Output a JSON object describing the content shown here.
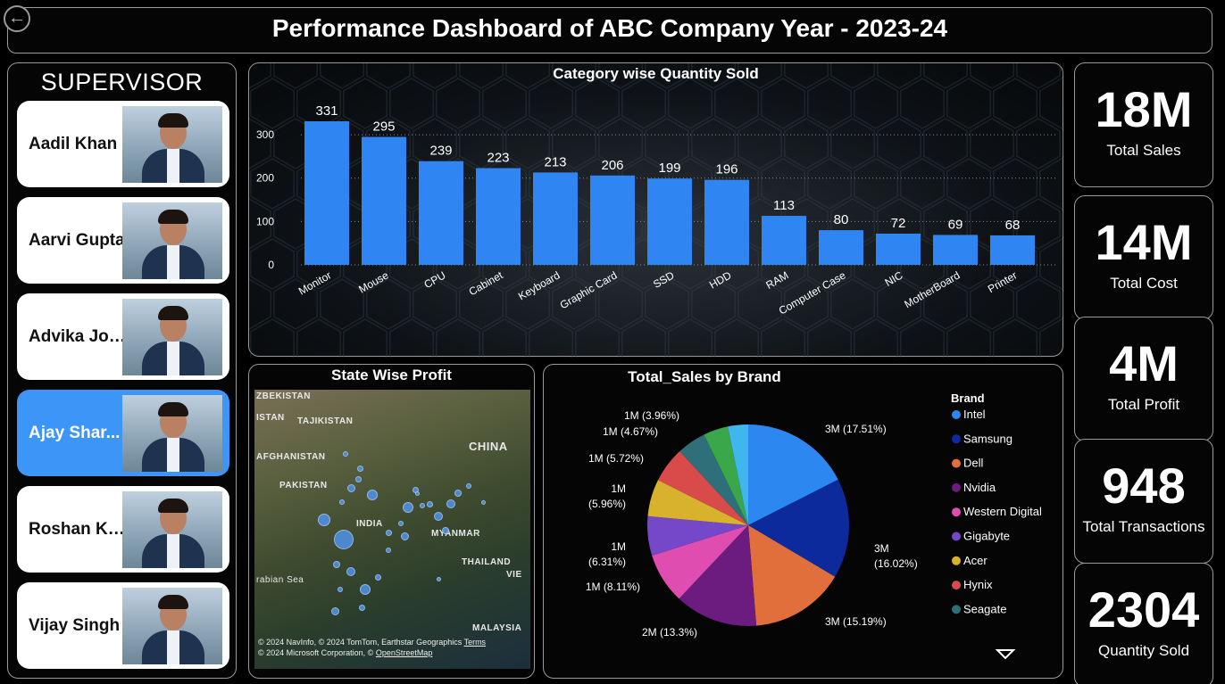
{
  "header": {
    "title": "Performance Dashboard of ABC Company Year - 2023-24",
    "back_icon": "back-arrow-icon",
    "back_glyph": "←"
  },
  "supervisor": {
    "heading": "SUPERVISOR",
    "items": [
      {
        "name": "Aadil Khan",
        "selected": false
      },
      {
        "name": "Aarvi Gupta",
        "selected": false
      },
      {
        "name": "Advika Jos...",
        "selected": false
      },
      {
        "name": "Ajay Shar...",
        "selected": true
      },
      {
        "name": "Roshan Ku...",
        "selected": false
      },
      {
        "name": "Vijay Singh",
        "selected": false
      }
    ]
  },
  "kpis": [
    {
      "value": "18M",
      "label": "Total Sales"
    },
    {
      "value": "14M",
      "label": "Total Cost"
    },
    {
      "value": "4M",
      "label": "Total Profit"
    },
    {
      "value": "948",
      "label": "Total Transactions"
    },
    {
      "value": "2304",
      "label": "Quantity Sold"
    }
  ],
  "map": {
    "title": "State Wise Profit",
    "labels": [
      "ZBEKISTAN",
      "ISTAN",
      "TAJIKISTAN",
      "AFGHANISTAN",
      "PAKISTAN",
      "CHINA",
      "INDIA",
      "MYANMAR",
      "THAILAND",
      "VIE",
      "rabian Sea",
      "MALAYSIA"
    ],
    "attribution": "© 2024 NavInfo, © 2024 TomTom, Earthstar Geographics",
    "terms": "Terms",
    "attribution2": "© 2024 Microsoft Corporation, ©",
    "osm": "OpenStreetMap"
  },
  "colors": {
    "bar": "#2f86f2",
    "accent": "#3d95f7"
  },
  "chart_data": [
    {
      "type": "bar",
      "title": "Category wise Quantity Sold",
      "categories": [
        "Monitor",
        "Mouse",
        "CPU",
        "Cabinet",
        "Keyboard",
        "Graphic Card",
        "SSD",
        "HDD",
        "RAM",
        "Computer Case",
        "NIC",
        "MotherBoard",
        "Printer"
      ],
      "values": [
        331,
        295,
        239,
        223,
        213,
        206,
        199,
        196,
        113,
        80,
        72,
        69,
        68
      ],
      "yticks": [
        0,
        100,
        200,
        300
      ],
      "ylim": [
        0,
        331
      ],
      "grid": true
    },
    {
      "type": "pie",
      "title": "Total_Sales by Brand",
      "legend_title": "Brand",
      "legend_position": "right",
      "series": [
        {
          "name": "Intel",
          "percent": 17.51,
          "label": "3M (17.51%)",
          "color": "#2d87f0"
        },
        {
          "name": "Samsung",
          "percent": 16.02,
          "label": "3M (16.02%)",
          "color": "#0c2a9b"
        },
        {
          "name": "Dell",
          "percent": 15.19,
          "label": "3M (15.19%)",
          "color": "#e06f3c"
        },
        {
          "name": "Nvidia",
          "percent": 13.3,
          "label": "2M (13.3%)",
          "color": "#6c1b7e"
        },
        {
          "name": "Western Digital",
          "percent": 8.11,
          "label": "1M (8.11%)",
          "color": "#e04db0"
        },
        {
          "name": "Gigabyte",
          "percent": 6.31,
          "label": "1M (6.31%)",
          "color": "#7548c9"
        },
        {
          "name": "Acer",
          "percent": 5.96,
          "label": "1M (5.96%)",
          "color": "#d8b12d"
        },
        {
          "name": "Hynix",
          "percent": 5.72,
          "label": "1M (5.72%)",
          "color": "#d94b4b"
        },
        {
          "name": "Seagate",
          "percent": 4.67,
          "label": "1M (4.67%)",
          "color": "#2e6f7a"
        },
        {
          "name": "",
          "percent": 3.96,
          "label": "1M (3.96%)",
          "color": "#3aa84a"
        },
        {
          "name": "",
          "percent": 3.25,
          "label": "",
          "color": "#3fb6ee"
        }
      ]
    }
  ]
}
